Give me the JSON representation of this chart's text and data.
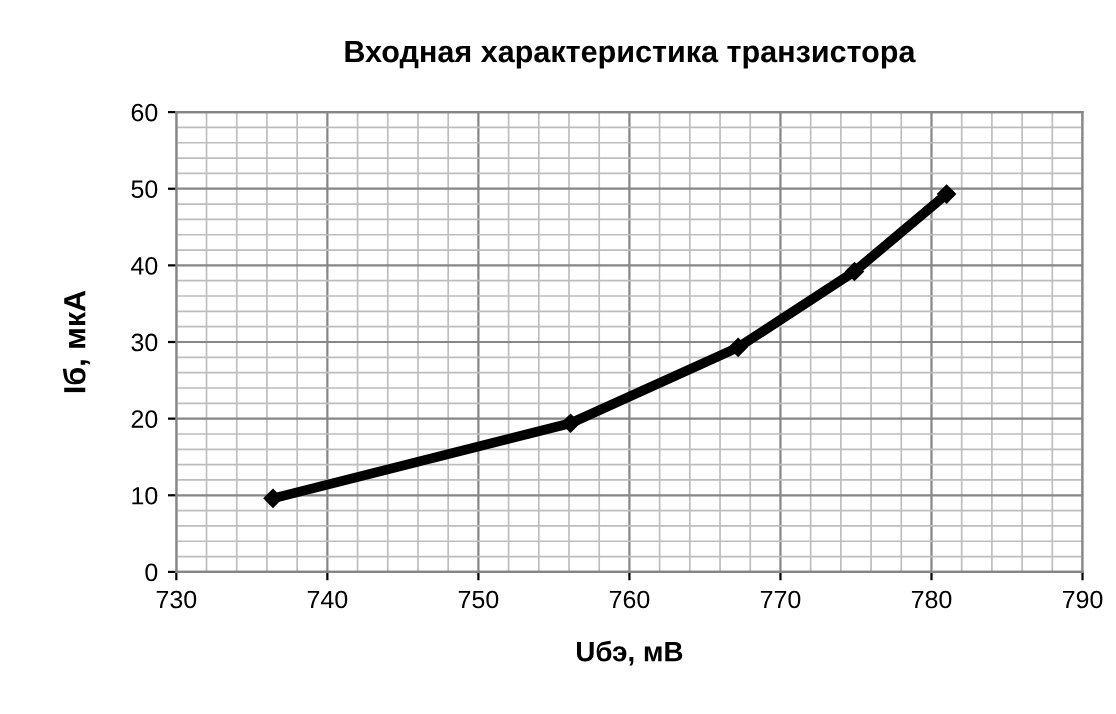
{
  "chart_data": {
    "type": "line",
    "title": "Входная характеристика транзистора",
    "xlabel": "Uбэ, мВ",
    "ylabel": "Iб, мкА",
    "x": [
      736.4,
      756.1,
      767.2,
      774.9,
      781
    ],
    "series": [
      {
        "color": "#000000",
        "values": [
          9.6,
          19.4,
          29.3,
          39.2,
          49.3
        ]
      }
    ],
    "xlim": [
      730,
      790
    ],
    "xticks": [
      730,
      740,
      750,
      760,
      770,
      780,
      790
    ],
    "ylim": [
      0,
      60
    ],
    "yticks": [
      0,
      10,
      20,
      30,
      40,
      50,
      60
    ],
    "grid": true,
    "marker": "diamond",
    "line_style": "solid"
  }
}
